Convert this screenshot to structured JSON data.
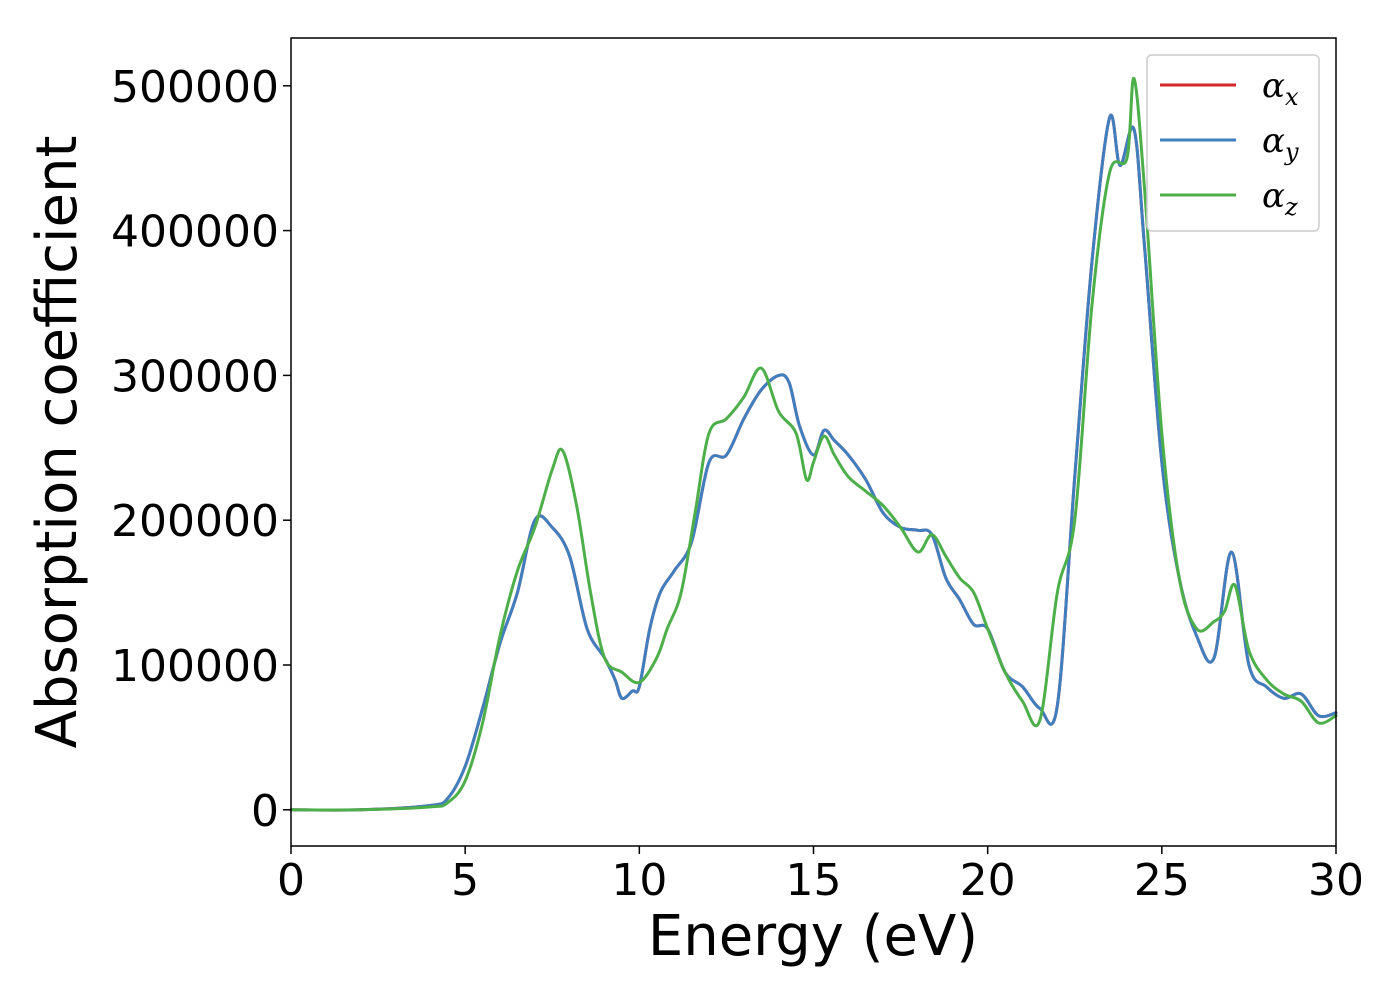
{
  "chart_data": {
    "type": "line",
    "xlabel": "Energy (eV)",
    "ylabel": "Absorption coefficient",
    "xlim": [
      0,
      30
    ],
    "ylim": [
      -25000,
      533000
    ],
    "x_ticks": [
      0,
      5,
      10,
      15,
      20,
      25,
      30
    ],
    "y_ticks": [
      0,
      100000,
      200000,
      300000,
      400000,
      500000
    ],
    "grid": false,
    "legend_position": "top-right",
    "series": [
      {
        "name": "α_x",
        "symbol": "α",
        "subscript": "x",
        "color": "#d62728",
        "x": [
          0,
          2,
          4,
          4.5,
          5,
          5.5,
          6,
          6.5,
          7,
          7.5,
          8,
          8.5,
          9,
          9.3,
          9.5,
          9.8,
          10,
          10.3,
          10.6,
          11,
          11.5,
          12,
          12.5,
          13,
          13.5,
          14,
          14.3,
          14.6,
          15,
          15.3,
          15.6,
          16,
          16.5,
          17,
          17.5,
          18,
          18.4,
          18.8,
          19.2,
          19.6,
          20,
          20.5,
          21,
          21.5,
          22,
          22.5,
          23,
          23.5,
          23.8,
          24.2,
          24.5,
          25,
          25.5,
          26,
          26.5,
          27,
          27.5,
          28,
          28.5,
          29,
          29.5,
          30
        ],
        "y": [
          0,
          0,
          3000,
          8000,
          30000,
          70000,
          115000,
          150000,
          200000,
          195000,
          175000,
          125000,
          105000,
          90000,
          77000,
          82000,
          85000,
          125000,
          150000,
          165000,
          185000,
          240000,
          245000,
          270000,
          290000,
          300000,
          295000,
          265000,
          245000,
          262000,
          255000,
          245000,
          228000,
          205000,
          195000,
          193000,
          190000,
          160000,
          145000,
          128000,
          125000,
          95000,
          85000,
          70000,
          72000,
          230000,
          380000,
          478000,
          445000,
          470000,
          390000,
          240000,
          160000,
          120000,
          105000,
          178000,
          100000,
          85000,
          77000,
          80000,
          65000,
          67000
        ]
      },
      {
        "name": "α_y",
        "symbol": "α",
        "subscript": "y",
        "color": "#3f7fbf",
        "x": [
          0,
          2,
          4,
          4.5,
          5,
          5.5,
          6,
          6.5,
          7,
          7.5,
          8,
          8.5,
          9,
          9.3,
          9.5,
          9.8,
          10,
          10.3,
          10.6,
          11,
          11.5,
          12,
          12.5,
          13,
          13.5,
          14,
          14.3,
          14.6,
          15,
          15.3,
          15.6,
          16,
          16.5,
          17,
          17.5,
          18,
          18.4,
          18.8,
          19.2,
          19.6,
          20,
          20.5,
          21,
          21.5,
          22,
          22.5,
          23,
          23.5,
          23.8,
          24.2,
          24.5,
          25,
          25.5,
          26,
          26.5,
          27,
          27.5,
          28,
          28.5,
          29,
          29.5,
          30
        ],
        "y": [
          0,
          0,
          3000,
          8000,
          30000,
          70000,
          115000,
          150000,
          200000,
          195000,
          175000,
          125000,
          105000,
          90000,
          77000,
          82000,
          85000,
          125000,
          150000,
          165000,
          185000,
          240000,
          245000,
          270000,
          290000,
          300000,
          295000,
          265000,
          245000,
          262000,
          255000,
          245000,
          228000,
          205000,
          195000,
          193000,
          190000,
          160000,
          145000,
          128000,
          125000,
          95000,
          85000,
          70000,
          72000,
          230000,
          380000,
          478000,
          445000,
          470000,
          390000,
          240000,
          160000,
          120000,
          105000,
          178000,
          100000,
          85000,
          77000,
          80000,
          65000,
          67000
        ]
      },
      {
        "name": "α_z",
        "symbol": "α",
        "subscript": "z",
        "color": "#4daf4a",
        "x": [
          0,
          2,
          4,
          4.5,
          5,
          5.5,
          6,
          6.5,
          7,
          7.5,
          7.8,
          8.2,
          8.6,
          9,
          9.5,
          10,
          10.5,
          10.8,
          11.2,
          11.6,
          12,
          12.5,
          13,
          13.5,
          14,
          14.5,
          14.8,
          15,
          15.3,
          15.6,
          16,
          16.5,
          17,
          17.5,
          18,
          18.4,
          18.8,
          19.2,
          19.6,
          20,
          20.5,
          21,
          21.5,
          22,
          22.5,
          23,
          23.5,
          24,
          24.2,
          24.5,
          25,
          25.5,
          26,
          26.5,
          26.8,
          27.1,
          27.5,
          28,
          28.5,
          29,
          29.5,
          30
        ],
        "y": [
          0,
          0,
          2000,
          5000,
          20000,
          60000,
          120000,
          165000,
          195000,
          235000,
          248000,
          210000,
          150000,
          105000,
          95000,
          88000,
          105000,
          125000,
          150000,
          205000,
          260000,
          270000,
          285000,
          305000,
          275000,
          260000,
          228000,
          240000,
          258000,
          245000,
          230000,
          220000,
          210000,
          195000,
          178000,
          190000,
          175000,
          160000,
          150000,
          125000,
          95000,
          75000,
          62000,
          150000,
          200000,
          350000,
          440000,
          450000,
          505000,
          430000,
          260000,
          160000,
          125000,
          130000,
          137000,
          155000,
          110000,
          90000,
          80000,
          75000,
          60000,
          65000
        ]
      }
    ]
  }
}
